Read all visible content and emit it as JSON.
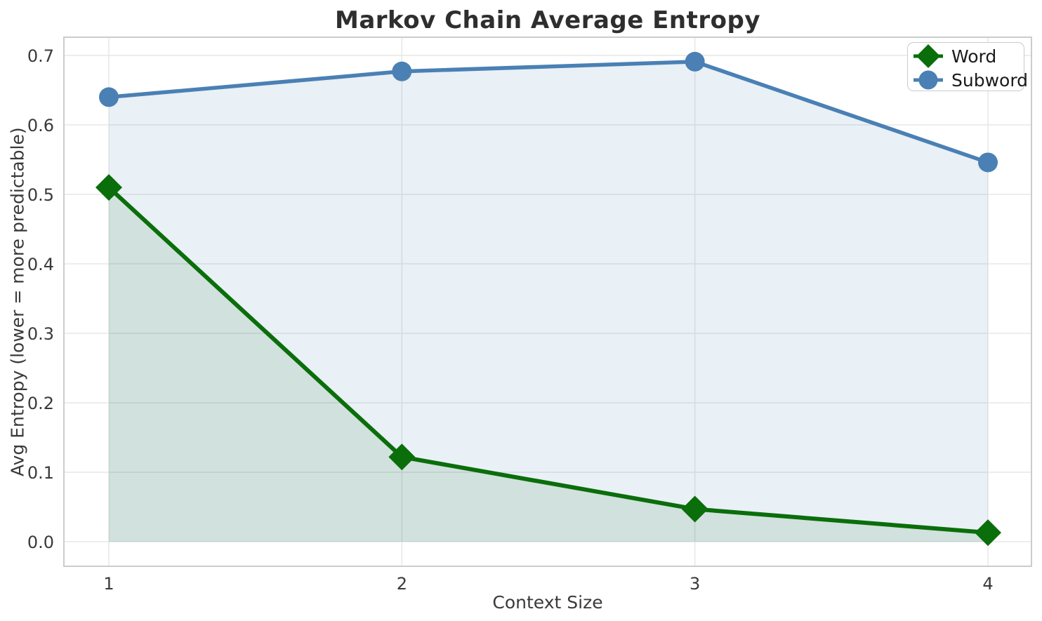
{
  "chart_data": {
    "type": "line",
    "title": "Markov Chain Average Entropy",
    "xlabel": "Context Size",
    "ylabel": "Avg Entropy (lower = more predictable)",
    "x": [
      1,
      2,
      3,
      4
    ],
    "xtick_labels": [
      "1",
      "2",
      "3",
      "4"
    ],
    "yticks": [
      0.0,
      0.1,
      0.2,
      0.3,
      0.4,
      0.5,
      0.6,
      0.7
    ],
    "ytick_labels": [
      "0.0",
      "0.1",
      "0.2",
      "0.3",
      "0.4",
      "0.5",
      "0.6",
      "0.7"
    ],
    "xlim": [
      0.85,
      4.15
    ],
    "ylim": [
      -0.035,
      0.727
    ],
    "grid": true,
    "legend_position": "upper right",
    "series": [
      {
        "name": "Word",
        "marker": "diamond",
        "color": "#0a6e0a",
        "area_fill_color": "rgba(0,100,0,0.10)",
        "area_fill_to_zero": true,
        "values": [
          0.51,
          0.122,
          0.047,
          0.013
        ]
      },
      {
        "name": "Subword",
        "marker": "circle",
        "color": "#4a80b4",
        "area_fill_color": "rgba(74,128,180,0.12)",
        "area_fill_to_zero": true,
        "values": [
          0.64,
          0.677,
          0.691,
          0.546
        ]
      }
    ],
    "style": {
      "grid_color": "#e7e7e7",
      "spine_color": "#cccccc",
      "tick_label_color": "#3a3a3a"
    }
  }
}
